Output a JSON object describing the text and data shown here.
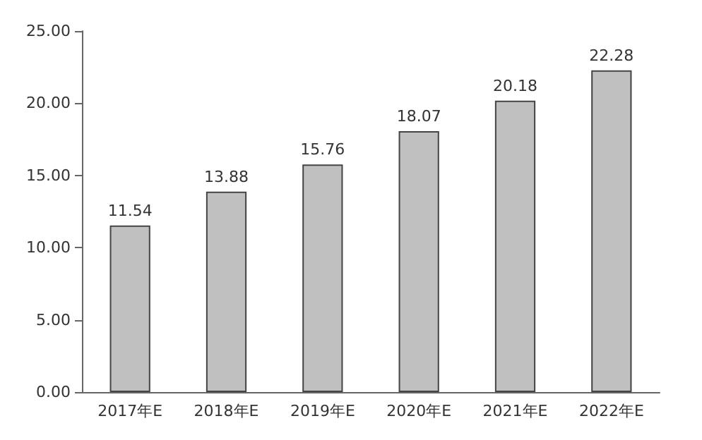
{
  "chart_data": {
    "type": "bar",
    "categories": [
      "2017年E",
      "2018年E",
      "2019年E",
      "2020年E",
      "2021年E",
      "2022年E"
    ],
    "values": [
      11.54,
      13.88,
      15.76,
      18.07,
      20.18,
      22.28
    ],
    "color": "#c0c0c0",
    "data_labels": true,
    "grid": false,
    "ylim": [
      0,
      25
    ],
    "yticks": [
      {
        "value": 0,
        "label": "0.00"
      },
      {
        "value": 5,
        "label": "5.00"
      },
      {
        "value": 10,
        "label": "10.00"
      },
      {
        "value": 15,
        "label": "15.00"
      },
      {
        "value": 20,
        "label": "20.00"
      },
      {
        "value": 25,
        "label": "25.00"
      }
    ]
  }
}
